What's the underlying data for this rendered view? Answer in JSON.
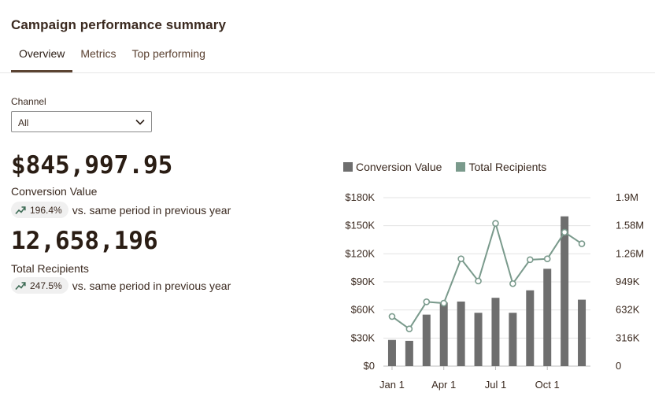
{
  "header": {
    "title": "Campaign performance summary"
  },
  "tabs": [
    {
      "label": "Overview",
      "active": true
    },
    {
      "label": "Metrics",
      "active": false
    },
    {
      "label": "Top performing",
      "active": false
    }
  ],
  "filter": {
    "label": "Channel",
    "value": "All"
  },
  "kpis": [
    {
      "value": "$845,997.95",
      "label": "Conversion Value",
      "change": "196.4%",
      "compare_text": "vs. same period in previous year"
    },
    {
      "value": "12,658,196",
      "label": "Total Recipients",
      "change": "247.5%",
      "compare_text": "vs. same period in previous year"
    }
  ],
  "colors": {
    "bar": "#6e6e6e",
    "line": "#7a9a8c",
    "trend_icon": "#3d6b55"
  },
  "icons": {
    "trend": "trending-up-icon",
    "dropdown": "chevron-down-icon"
  },
  "chart_data": {
    "type": "bar",
    "series": [
      {
        "name": "Conversion Value",
        "kind": "bar",
        "axis": "left",
        "values": [
          28000,
          27000,
          55000,
          68000,
          69000,
          57000,
          73000,
          57000,
          81000,
          104000,
          160000,
          71000
        ]
      },
      {
        "name": "Total Recipients",
        "kind": "line",
        "axis": "right",
        "values": [
          560000,
          420000,
          725000,
          710000,
          1210000,
          960000,
          1610000,
          930000,
          1200000,
          1210000,
          1510000,
          1380000
        ]
      }
    ],
    "x_ticks": [
      "Jan 1",
      "Apr 1",
      "Jul 1",
      "Oct 1"
    ],
    "x_tick_positions": [
      0,
      3,
      6,
      9
    ],
    "y_left": {
      "ticks": [
        "$0",
        "$30K",
        "$60K",
        "$90K",
        "$120K",
        "$150K",
        "$180K"
      ],
      "range": [
        0,
        180000
      ]
    },
    "y_right": {
      "ticks": [
        "0",
        "316K",
        "632K",
        "949K",
        "1.26M",
        "1.58M",
        "1.9M"
      ],
      "range": [
        0,
        1900000
      ]
    },
    "grid": true,
    "legend": "top-left"
  }
}
